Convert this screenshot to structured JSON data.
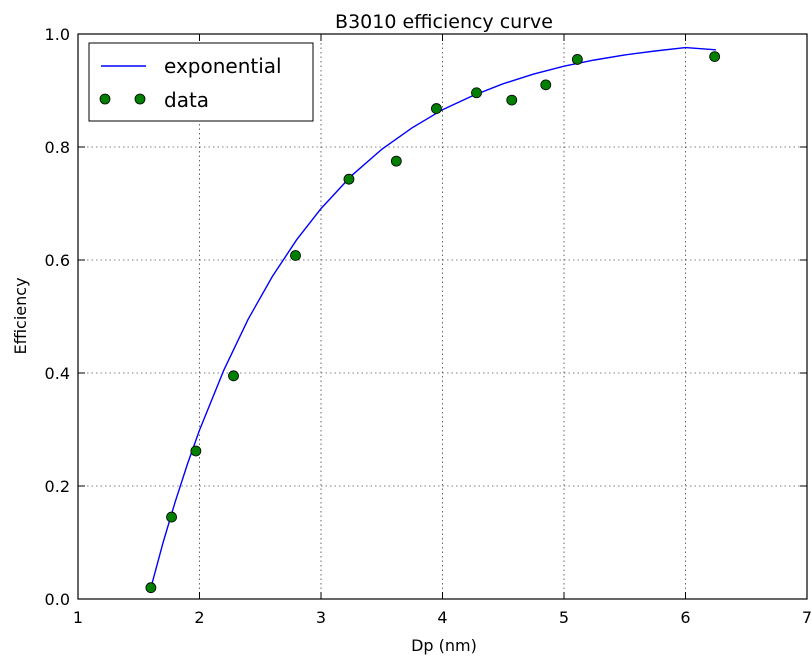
{
  "chart_data": {
    "type": "line",
    "title": "B3010 efficiency curve",
    "xlabel": "Dp (nm)",
    "ylabel": "Efficiency",
    "xlim": [
      1,
      7
    ],
    "ylim": [
      0.0,
      1.0
    ],
    "xticks": [
      "1",
      "2",
      "3",
      "4",
      "5",
      "6",
      "7"
    ],
    "yticks": [
      "0.0",
      "0.2",
      "0.4",
      "0.6",
      "0.8",
      "1.0"
    ],
    "grid": true,
    "legend_position": "top-left",
    "series": [
      {
        "name": "exponential",
        "kind": "line",
        "color": "#0000ff",
        "x": [
          1.6,
          1.7,
          1.8,
          1.9,
          2.0,
          2.2,
          2.4,
          2.6,
          2.8,
          3.0,
          3.25,
          3.5,
          3.75,
          4.0,
          4.25,
          4.5,
          4.75,
          5.0,
          5.25,
          5.5,
          5.75,
          6.0,
          6.25
        ],
        "y": [
          0.02,
          0.1,
          0.172,
          0.238,
          0.299,
          0.405,
          0.495,
          0.571,
          0.636,
          0.691,
          0.749,
          0.796,
          0.834,
          0.866,
          0.891,
          0.912,
          0.929,
          0.943,
          0.954,
          0.963,
          0.97,
          0.976,
          0.972
        ]
      },
      {
        "name": "data",
        "kind": "scatter",
        "color": "#007f00",
        "x": [
          1.6,
          1.77,
          1.97,
          2.28,
          2.79,
          3.23,
          3.62,
          3.95,
          4.28,
          4.57,
          4.85,
          5.11,
          6.24
        ],
        "y": [
          0.02,
          0.145,
          0.262,
          0.395,
          0.608,
          0.743,
          0.775,
          0.868,
          0.896,
          0.883,
          0.91,
          0.955,
          0.96
        ]
      }
    ]
  }
}
